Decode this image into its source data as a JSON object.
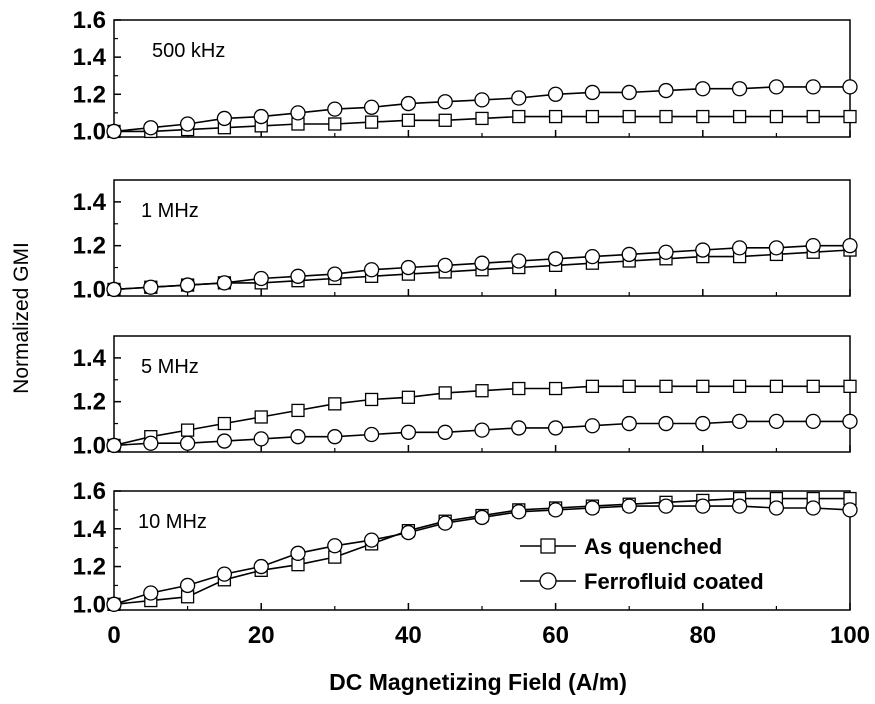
{
  "chart_data": {
    "type": "line",
    "xlabel": "DC Magnetizing Field (A/m)",
    "ylabel": "Normalized GMI",
    "xlim": [
      0,
      100
    ],
    "xticks": [
      "0",
      "20",
      "40",
      "60",
      "80",
      "100"
    ],
    "legend": {
      "placement": "inside bottom panel, right",
      "entries": [
        "As quenched",
        "Ferrofluid coated"
      ]
    },
    "x": [
      0,
      5,
      10,
      15,
      20,
      25,
      30,
      35,
      40,
      45,
      50,
      55,
      60,
      65,
      70,
      75,
      80,
      85,
      90,
      95,
      100
    ],
    "panels": [
      {
        "label": "500 kHz",
        "ylim": [
          0.97,
          1.6
        ],
        "yticks": [
          "1.0",
          "1.2",
          "1.4",
          "1.6"
        ],
        "series": [
          {
            "name": "As quenched",
            "marker": "square",
            "values": [
              1.0,
              1.0,
              1.01,
              1.02,
              1.03,
              1.04,
              1.04,
              1.05,
              1.06,
              1.06,
              1.07,
              1.08,
              1.08,
              1.08,
              1.08,
              1.08,
              1.08,
              1.08,
              1.08,
              1.08,
              1.08
            ]
          },
          {
            "name": "Ferrofluid coated",
            "marker": "circle",
            "values": [
              1.0,
              1.02,
              1.04,
              1.07,
              1.08,
              1.1,
              1.12,
              1.13,
              1.15,
              1.16,
              1.17,
              1.18,
              1.2,
              1.21,
              1.21,
              1.22,
              1.23,
              1.23,
              1.24,
              1.24,
              1.24
            ]
          }
        ]
      },
      {
        "label": "1 MHz",
        "ylim": [
          0.97,
          1.5
        ],
        "yticks": [
          "1.0",
          "1.2",
          "1.4"
        ],
        "series": [
          {
            "name": "As quenched",
            "marker": "square",
            "values": [
              1.0,
              1.01,
              1.02,
              1.03,
              1.03,
              1.04,
              1.05,
              1.06,
              1.07,
              1.08,
              1.09,
              1.1,
              1.11,
              1.12,
              1.13,
              1.14,
              1.15,
              1.15,
              1.16,
              1.17,
              1.18
            ]
          },
          {
            "name": "Ferrofluid coated",
            "marker": "circle",
            "values": [
              1.0,
              1.01,
              1.02,
              1.03,
              1.05,
              1.06,
              1.07,
              1.09,
              1.1,
              1.11,
              1.12,
              1.13,
              1.14,
              1.15,
              1.16,
              1.17,
              1.18,
              1.19,
              1.19,
              1.2,
              1.2
            ]
          }
        ]
      },
      {
        "label": "5 MHz",
        "ylim": [
          0.97,
          1.5
        ],
        "yticks": [
          "1.0",
          "1.2",
          "1.4"
        ],
        "series": [
          {
            "name": "As quenched",
            "marker": "square",
            "values": [
              1.0,
              1.04,
              1.07,
              1.1,
              1.13,
              1.16,
              1.19,
              1.21,
              1.22,
              1.24,
              1.25,
              1.26,
              1.26,
              1.27,
              1.27,
              1.27,
              1.27,
              1.27,
              1.27,
              1.27,
              1.27
            ]
          },
          {
            "name": "Ferrofluid coated",
            "marker": "circle",
            "values": [
              1.0,
              1.01,
              1.01,
              1.02,
              1.03,
              1.04,
              1.04,
              1.05,
              1.06,
              1.06,
              1.07,
              1.08,
              1.08,
              1.09,
              1.1,
              1.1,
              1.1,
              1.11,
              1.11,
              1.11,
              1.11
            ]
          }
        ]
      },
      {
        "label": "10 MHz",
        "ylim": [
          0.97,
          1.6
        ],
        "yticks": [
          "1.0",
          "1.2",
          "1.4",
          "1.6"
        ],
        "series": [
          {
            "name": "As quenched",
            "marker": "square",
            "values": [
              1.0,
              1.02,
              1.04,
              1.13,
              1.18,
              1.21,
              1.25,
              1.32,
              1.39,
              1.44,
              1.47,
              1.5,
              1.51,
              1.52,
              1.53,
              1.54,
              1.55,
              1.56,
              1.56,
              1.56,
              1.56
            ]
          },
          {
            "name": "Ferrofluid coated",
            "marker": "circle",
            "values": [
              1.0,
              1.06,
              1.1,
              1.16,
              1.2,
              1.27,
              1.31,
              1.34,
              1.38,
              1.43,
              1.46,
              1.49,
              1.5,
              1.51,
              1.52,
              1.52,
              1.52,
              1.52,
              1.51,
              1.51,
              1.5
            ]
          }
        ]
      }
    ]
  }
}
